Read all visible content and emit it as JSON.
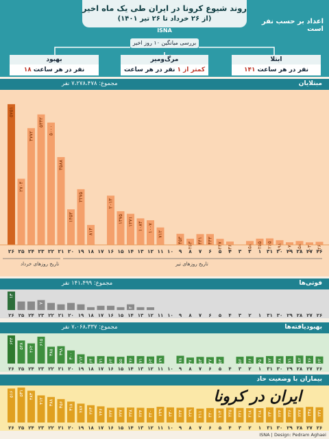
{
  "header": {
    "title": "روند شیوع کرونا در ایران طی یک ماه اخیر",
    "subtitle": "(از ۲۶ خرداد تا ۲۶ تیر ۱۴۰۱)",
    "source_tag": "ISNA",
    "stats_by_individual": "اعداد بر حسب نفر است",
    "review_label": "بررسی میانگین ۱۰ روز اخیر"
  },
  "cards": [
    {
      "heading": "ابتلا",
      "num": "۱۴۱",
      "text": " نفر در هر ساعت"
    },
    {
      "heading": "مرگ‌ومیر",
      "num": "کمتر از ۱",
      "text": " نفر در هر ساعت"
    },
    {
      "heading": "بهبود",
      "num": "۱۸",
      "text": " نفر در هر ساعت"
    }
  ],
  "colors": {
    "header": "#2d9aa6",
    "band": "#1f8190",
    "bar": "#f4a06b",
    "bar_latest": "#d2641f",
    "death": "#9e9e9e",
    "recover": "#3e8f3e",
    "severe": "#f2cc62"
  },
  "chart_data": [
    {
      "type": "bar",
      "title": "مبتلایان",
      "total_label": "مجموع: ۷،۲۷۸،۴۷۸ نفر",
      "x": [
        "26",
        "27",
        "28",
        "29",
        "30",
        "31",
        "1",
        "2",
        "3",
        "4",
        "5",
        "6",
        "7",
        "8",
        "9",
        "10",
        "11",
        "12",
        "13",
        "14",
        "15",
        "16",
        "17",
        "18",
        "19",
        "20",
        "21",
        "22",
        "23",
        "24",
        "25",
        "26"
      ],
      "x_display": [
        "۲۶",
        "۲۷",
        "۲۸",
        "۲۹",
        "۳۰",
        "۳۱",
        "۱",
        "۲",
        "۳",
        "۴",
        "۵",
        "۶",
        "۷",
        "۸",
        "۹",
        "۱۰",
        "۱۱",
        "۱۲",
        "۱۳",
        "۱۴",
        "۱۵",
        "۱۶",
        "۱۷",
        "۱۸",
        "۱۹",
        "۲۰",
        "۲۱",
        "۲۲",
        "۲۳",
        "۲۴",
        "۲۵",
        "۲۶"
      ],
      "values": [
        126,
        103,
        158,
        107,
        191,
        265,
        255,
        158,
        0,
        136,
        247,
        443,
        441,
        253,
        453,
        0,
        712,
        1007,
        1084,
        1271,
        1375,
        2013,
        0,
        814,
        2275,
        1453,
        3588,
        5000,
        5332,
        4772,
        2704,
        5751
      ],
      "value_labels": [
        "۱۲۶",
        "۱۰۳",
        "۱۵۸",
        "۱۰۷",
        "۱۹۱",
        "۲۶۵",
        "۲۵۵",
        "۱۵۸",
        "",
        "۱۳۶",
        "۲۴۷",
        "۴۴۳",
        "۴۴۱",
        "۲۵۳",
        "۴۵۳",
        "",
        "۷۱۲",
        "۱۰۰۷",
        "۱۰۸۴",
        "۱۲۷۱",
        "۱۳۷۵",
        "۲۰۱۳",
        "",
        "۸۱۴",
        "۲۲۷۵",
        "۱۴۵۳",
        "۳۵۸۸",
        "۵۰۰۰",
        "۵۳۳۲",
        "۴۷۷۲",
        "۲۷۰۴",
        "۵۷۵۱"
      ],
      "ylim": [
        0,
        6000
      ],
      "xlabel_left": "تاریخ روزهای خرداد",
      "xlabel_right": "تاریخ روزهای تیر"
    },
    {
      "type": "bar",
      "title": "فوتی‌ها",
      "total_label": "مجموع: ۱۴۱،۴۹۹ نفر",
      "x": [
        "26",
        "27",
        "28",
        "29",
        "30",
        "31",
        "1",
        "2",
        "3",
        "4",
        "5",
        "6",
        "7",
        "8",
        "9",
        "10",
        "11",
        "12",
        "13",
        "14",
        "15",
        "16",
        "17",
        "18",
        "19",
        "20",
        "21",
        "22",
        "23",
        "24",
        "25",
        "26"
      ],
      "values": [
        0,
        0,
        0,
        0,
        0,
        0,
        0,
        0,
        0,
        0,
        0,
        0,
        0,
        0,
        0,
        0,
        0,
        1,
        2,
        4,
        2,
        3,
        3,
        2,
        4,
        5,
        4,
        5,
        7,
        6,
        6,
        13
      ],
      "value_labels": [
        "",
        "",
        "",
        "",
        "",
        "",
        "",
        "",
        "",
        "",
        "",
        "",
        "",
        "",
        "",
        "",
        "",
        "",
        "",
        "۴",
        "",
        "",
        "",
        "",
        "",
        "",
        "",
        "",
        "۷",
        "",
        "",
        "۱۳"
      ]
    },
    {
      "type": "bar",
      "title": "بهبودیافته‌ها",
      "total_label": "مجموع: ۷،۰۶۸،۳۳۷ نفر",
      "x": [
        "26",
        "27",
        "28",
        "29",
        "30",
        "31",
        "1",
        "2",
        "3",
        "4",
        "5",
        "6",
        "7",
        "8",
        "9",
        "10",
        "11",
        "12",
        "13",
        "14",
        "15",
        "16",
        "17",
        "18",
        "19",
        "20",
        "21",
        "22",
        "23",
        "24",
        "25",
        "26"
      ],
      "values": [
        162,
        176,
        182,
        171,
        168,
        172,
        145,
        166,
        156,
        0,
        154,
        147,
        153,
        137,
        178,
        0,
        179,
        162,
        171,
        176,
        155,
        162,
        171,
        164,
        212,
        300,
        398,
        385,
        615,
        462,
        528,
        644
      ],
      "value_labels": [
        "۱۶۲",
        "۱۷۶",
        "۱۸۲",
        "۱۷۱",
        "۱۶۸",
        "۱۷۲",
        "۱۴۵",
        "۱۶۶",
        "۱۵۶",
        "",
        "۱۵۴",
        "۱۴۷",
        "۱۵۳",
        "۱۳۷",
        "۱۷۸",
        "",
        "۱۷۹",
        "۱۶۲",
        "۱۷۱",
        "۱۷۶",
        "۱۵۵",
        "۱۶۲",
        "۱۷۱",
        "۱۶۴",
        "۲۱۲",
        "۳۰۰",
        "۳۹۸",
        "۳۸۵",
        "۶۱۵",
        "۴۶۲",
        "۵۲۸",
        "۶۴۴"
      ]
    },
    {
      "type": "bar",
      "title": "بیماران با وضعیت حاد",
      "x": [
        "26",
        "27",
        "28",
        "29",
        "30",
        "31",
        "1",
        "2",
        "3",
        "4",
        "5",
        "6",
        "7",
        "8",
        "9",
        "10",
        "11",
        "12",
        "13",
        "14",
        "15",
        "16",
        "17",
        "18",
        "19",
        "20",
        "21",
        "22",
        "23",
        "24",
        "25",
        "26"
      ],
      "values": [
        231,
        238,
        227,
        226,
        224,
        230,
        218,
        218,
        221,
        225,
        213,
        220,
        211,
        229,
        224,
        230,
        239,
        220,
        224,
        228,
        227,
        224,
        246,
        263,
        287,
        318,
        356,
        388,
        412,
        483,
        531,
        516
      ],
      "value_labels": [
        "۲۳۱",
        "۲۳۸",
        "۲۲۷",
        "۲۲۶",
        "۲۲۴",
        "۲۳۰",
        "۲۱۸",
        "۲۱۸",
        "۲۲۱",
        "۲۲۵",
        "۲۱۳",
        "۲۲۰",
        "۲۱۱",
        "۲۲۹",
        "۲۲۴",
        "۲۳۰",
        "۲۳۹",
        "۲۲۰",
        "۲۲۴",
        "۲۲۸",
        "۲۲۷",
        "۲۲۴",
        "۲۴۶",
        "۲۶۳",
        "۲۸۷",
        "۳۱۸",
        "۳۵۶",
        "۳۸۸",
        "۴۱۲",
        "۴۸۳",
        "۵۳۱",
        "۵۱۶"
      ]
    }
  ],
  "watermark": "ایران در کرونا",
  "credit": "ISNA | Design: Pedram Aghaei"
}
